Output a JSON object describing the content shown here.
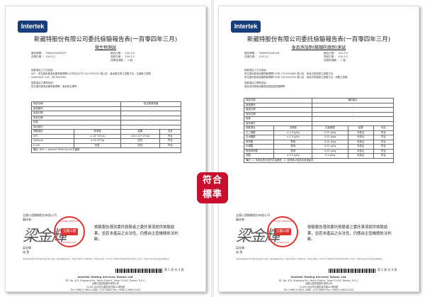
{
  "pages": [
    {
      "logo": "Intertek",
      "title": "新葳特股份有限公司委託檢驗報告表(一百零四年三月)",
      "subtitle": "微生物測試",
      "info_left": [
        "報告號碼 ： TWNC00426225",
        "送樣日期 ： 104.3.2"
      ],
      "info_right": [
        "報告日期 ： 104.3.5",
        "測試日期 ： 104.3.2",
        "送樣品項數 ： 1 個"
      ],
      "method": [
        "檢驗項目之方法依據:",
        "APC - 衛生福利部食品藥物管理署102年8月20日 1021950329 號公告 - 食品微生物之檢驗方法 - 生菌數之檢驗",
        "Coliform/E. coli - 3M Petrifilm",
        "",
        "檢驗項目之標準依據:",
        "衛生福利部食品藥物管理署 - 食品衛生標準"
      ],
      "sample_rows": [
        [
          "樣品名稱",
          "哈瓦那速熟麵"
        ],
        [
          "製造廠商",
          "-"
        ],
        [
          "製造日期",
          "-"
        ],
        [
          "有效日期",
          "-"
        ],
        [
          "批號",
          "-"
        ],
        [
          "保存條件",
          "-"
        ]
      ],
      "result_header": [
        "測驗項目",
        "參考值",
        "結果",
        "判定"
      ],
      "results": [
        [
          "APC",
          "≤ 10⁵ CFU/g",
          "3.8 x 10³ CFU/g",
          "符合"
        ],
        [
          "Coliform",
          "≤ 10 CFU/g",
          "陰性",
          "符合"
        ],
        [
          "E.coli",
          "陰性",
          "陰性",
          "符合"
        ]
      ],
      "note": "備註: APC = Aerobic Plate Count 生菌數",
      "page_no": "第 1 頁 共 4 頁"
    },
    {
      "logo": "Intertek",
      "title": "新葳特股份有限公司委託檢驗報告表(一百零四年三月)",
      "subtitle": "食品添加劑(酸類防腐劑)測試",
      "info_left": [
        "報告號碼 ： TWNE00426226",
        "送樣日期 ： 104.3.2"
      ],
      "info_right": [
        "報告日期 ： 104.3.5",
        "測試日期 ： 104.3.2",
        "送樣品項數 ： 1 個"
      ],
      "method": [
        "檢驗項目之方法依據:",
        "衛生福利部食品藥物管理署102年 1021950682 號公告 - 食品中防腐劑之檢驗方法",
        "衛生福利部食品藥物管理署102年 1021950329 號公告 - 食品中防腐劑之檢驗方法 - 丙酸之檢驗",
        "",
        "檢驗項目之標準依據:",
        "食品添加物使用範圍及限量暨規格標準"
      ],
      "sample_rows": [
        [
          "樣品名稱",
          "麵包脆片"
        ],
        [
          "製造廠商",
          "-"
        ],
        [
          "製造日期",
          "-"
        ],
        [
          "有效日期",
          "-"
        ],
        [
          "批號",
          "-"
        ],
        [
          "保存條件",
          "-"
        ]
      ],
      "result_header": [
        "檢驗項目",
        "法規值",
        "定量極限",
        "結果",
        "判定"
      ],
      "results": [
        [
          "己二烯酸",
          "≤ 1.0 g/kg",
          "0.02 g/kg",
          "未檢出",
          "符合"
        ],
        [
          "去水醋酸",
          "≤ 1.0 g/kg",
          "0.02 g/kg",
          "未檢出",
          "符合"
        ],
        [
          "苯甲酸",
          "禁用",
          "0.02 g/kg",
          "未檢出",
          "符合"
        ],
        [
          "水楊酸",
          "禁用",
          "0.02 g/kg",
          "未檢出",
          "符合"
        ],
        [
          "對羥苯甲酸",
          "禁用",
          "0.02 g/kg",
          "未檢出",
          "符合"
        ],
        [
          "丙酸",
          "≤ 2.5 g/kg",
          "0.5 g/kg",
          "未檢出",
          "符合"
        ]
      ],
      "note": "備註: 1. 未檢出表示低於定量極限，2. 檢測值以樣品本身重量計。",
      "page_no": "第 2 頁 共 4 頁"
    }
  ],
  "footer": {
    "org": "全國公證檢驗股份有限公司",
    "reviewer_label": "審核者：",
    "signature": "梁金輝",
    "signer_name": "梁金輝",
    "signer_title": "協 理",
    "stamp_center": "全國公證",
    "stamp_top": "TESTING SERVICES",
    "stamp_bottom": "TAIWAN LTD",
    "statement": "檢驗報告僅就委託檢驗者之委託事項提供檢驗結果，並若本產品之合法性，仍應由主管機關依法判斷。",
    "fine_print": "本報告依據貴客戶提供資料及樣品進行檢驗，僅對送驗樣品負責。本報告未經本公司書面同意，不得部分複製。Intertek 不承擔任何因使用本報告所產生之責任。本報告內容如有修改塗改即屬無效。",
    "company_en": "Intertek Testing Services Taiwan Ltd.",
    "address_en": "8F., No. 423, Ruiguang Rd., Neihu District, Taipei 11492, Taiwan, R.O.C.",
    "company_zh": "全國公證檢驗股份有限公司",
    "address_zh": "11492 台北市內湖區瑞光路423號8樓",
    "tel": "Tel (+886-2) 6602-2888 · 2797-8885   Fax (+886-2) 6602-2415"
  },
  "badge": {
    "line1": "符合",
    "line2": "標準",
    "color": "#c8102e"
  },
  "colors": {
    "logo": "#173d7a",
    "stamp": "#dd3333"
  }
}
